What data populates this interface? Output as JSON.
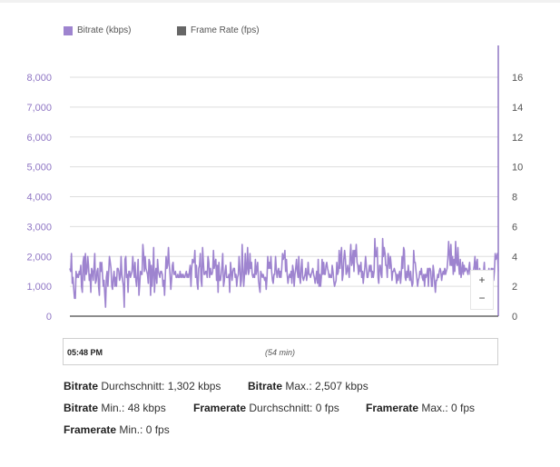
{
  "colors": {
    "bitrate": "#9e84cf",
    "framerate": "#666666",
    "grid": "#dddddd",
    "axis": "#8f76c4"
  },
  "legend": {
    "bitrate_label": "Bitrate (kbps)",
    "framerate_label": "Frame Rate (fps)"
  },
  "chart_data": {
    "type": "line",
    "series": [
      {
        "name": "Bitrate (kbps)",
        "axis": "left",
        "values": [
          1600,
          1500,
          2100,
          1100,
          1300,
          900,
          600,
          600,
          1500,
          1300,
          1400,
          1300,
          1500,
          1400,
          1700,
          1000,
          800,
          1800,
          2000,
          1200,
          2100,
          1400,
          1500,
          2000,
          1700,
          1200,
          1400,
          800,
          1600,
          1500,
          1200,
          1600,
          2100,
          1100,
          1200,
          1500,
          1600,
          1000,
          700,
          1800,
          1500,
          1800,
          1400,
          1000,
          1200,
          700,
          300,
          1300,
          1500,
          1000,
          1500,
          2000,
          1800,
          1600,
          1000,
          900,
          1300,
          1500,
          1000,
          1300,
          1000,
          1600,
          1600,
          1500,
          1200,
          1300,
          2000,
          1400,
          1200,
          1000,
          300,
          1900,
          2000,
          1300,
          1400,
          800,
          1500,
          1500,
          1300,
          1400,
          1500,
          2000,
          1600,
          1300,
          1800,
          1200,
          1000,
          1400,
          1900,
          700,
          1100,
          1500,
          1400,
          1400,
          2400,
          2100,
          1500,
          2000,
          1600,
          1500,
          1400,
          1100,
          1900,
          1800,
          700,
          1700,
          1000,
          1500,
          2300,
          800,
          1400,
          1600,
          1100,
          1900,
          1500,
          1400,
          1300,
          1500,
          1500,
          1400,
          1000,
          1200,
          700,
          1400,
          2000,
          1600,
          1700,
          2300,
          1800,
          1400,
          900,
          1200,
          1700,
          1800,
          1400,
          1400,
          1500,
          1300,
          1300,
          1400,
          1300,
          1300,
          1500,
          1300,
          1400,
          1300,
          1400,
          1300,
          1300,
          1400,
          1500,
          1300,
          1400,
          1300,
          1500,
          1700,
          1000,
          1600,
          1900,
          1800,
          1800,
          2200,
          1300,
          1700,
          1100,
          900,
          1600,
          1700,
          2100,
          1200,
          1000,
          2300,
          1800,
          1400,
          1400,
          1500,
          1500,
          1300,
          2000,
          1800,
          1300,
          1600,
          1400,
          1400,
          1500,
          2200,
          1600,
          1800,
          1900,
          1200,
          1700,
          800,
          1800,
          1200,
          1200,
          1400,
          1700,
          2100,
          1000,
          1200,
          1500,
          1700,
          1300,
          1300,
          1300,
          1400,
          800,
          1800,
          1500,
          1200,
          1500,
          1600,
          1600,
          1300,
          1400,
          1000,
          1300,
          1400,
          2000,
          1600,
          1000,
          1200,
          2400,
          1600,
          1000,
          1400,
          2100,
          1400,
          1600,
          2300,
          1400,
          1500,
          2100,
          1600,
          1800,
          1400,
          1300,
          1400,
          1300,
          1900,
          1400,
          1600,
          1800,
          1200,
          1000,
          800,
          1500,
          1400,
          1300,
          1400,
          1300,
          1200,
          1300,
          900,
          1300,
          2000,
          1600,
          1800,
          1600,
          2000,
          1500,
          1200,
          1100,
          1400,
          1400,
          2000,
          1600,
          1300,
          1500,
          1600,
          1300,
          1500,
          1300,
          1600,
          2100,
          1900,
          2000,
          2200,
          1500,
          1900,
          1400,
          1100,
          1300,
          1400,
          1300,
          1500,
          1100,
          1700,
          1500,
          1000,
          1400,
          1600,
          1900,
          1500,
          1300,
          2000,
          1300,
          1100,
          1600,
          1900,
          1300,
          1200,
          1300,
          1400,
          1600,
          1200,
          1400,
          1800,
          1400,
          1400,
          1300,
          1400,
          1500,
          1600,
          1400,
          1300,
          1100,
          1300,
          1500,
          1100,
          1900,
          1000,
          1400,
          1000,
          1300,
          1900,
          1400,
          1800,
          1400,
          1400,
          1700,
          1800,
          1600,
          1500,
          1300,
          1400,
          1300,
          1300,
          1700,
          1500,
          1200,
          1000,
          1100,
          1200,
          1800,
          1400,
          1500,
          2200,
          1600,
          2000,
          2300,
          1200,
          1400,
          1900,
          2200,
          1900,
          1400,
          1500,
          1700,
          1500,
          1300,
          2000,
          2400,
          1700,
          1800,
          2200,
          1500,
          2200,
          2000,
          2400,
          1800,
          1700,
          1400,
          1700,
          1500,
          1800,
          1300,
          1500,
          1100,
          1400,
          1600,
          2000,
          1700,
          1300,
          1300,
          1500,
          1700,
          1500,
          1700,
          1300,
          1500,
          1300,
          1500,
          2600,
          2000,
          2000,
          2300,
          1300,
          1100,
          1700,
          1700,
          1400,
          1300,
          2600,
          2000,
          2300,
          2100,
          1700,
          1700,
          1300,
          2100,
          1900,
          1600,
          2000,
          1700,
          1200,
          1500,
          1500,
          1600,
          1500,
          1400,
          1100,
          1400,
          1200,
          1400,
          1500,
          1100,
          1400,
          2000,
          1600,
          2300,
          2200,
          1300,
          1200,
          1500,
          1300,
          1700,
          1400,
          1200,
          1500,
          1200,
          1000,
          1100,
          2200,
          1800,
          1800,
          1500,
          1300,
          1000,
          1200,
          1300,
          1500,
          1400,
          1600,
          1300,
          1200,
          1400,
          1000,
          1400,
          1300,
          1400,
          1600,
          1000,
          1600,
          1600,
          1500,
          1000,
          1000,
          1700,
          1500,
          1100,
          800,
          1200,
          1200,
          1400,
          1300,
          1500,
          1600,
          1500,
          1200,
          1400,
          1500,
          1400,
          1600,
          1400,
          1500,
          1600,
          1900,
          2500,
          2100,
          1700,
          2400,
          1700,
          2000,
          1400,
          1900,
          1500,
          2500,
          1800,
          1700,
          2300,
          1700,
          1400,
          1900,
          1300,
          1500,
          1800,
          1400,
          1700,
          1500,
          1600,
          1600,
          1500,
          1400,
          1600,
          1800,
          1400,
          1400,
          1500,
          900,
          1500,
          1700,
          2000,
          1200,
          1800,
          1900,
          1300,
          800,
          1600,
          1300,
          1200,
          1500,
          1300,
          1500,
          1800,
          1300,
          900,
          1500,
          1000,
          1400,
          1600,
          1200,
          1300,
          1600,
          1400,
          1600,
          1200,
          1500,
          2100,
          1900,
          2000,
          2100,
          1500
        ]
      },
      {
        "name": "Frame Rate (fps)",
        "axis": "right",
        "values": []
      }
    ],
    "y_left": {
      "min": 0,
      "max": 8000,
      "ticks": [
        "0",
        "1,000",
        "2,000",
        "3,000",
        "4,000",
        "5,000",
        "6,000",
        "7,000",
        "8,000"
      ]
    },
    "y_right": {
      "min": 0,
      "max": 16,
      "ticks": [
        "0",
        "2",
        "4",
        "6",
        "8",
        "10",
        "12",
        "14",
        "16"
      ]
    },
    "grid": true,
    "legend_position": "top-left"
  },
  "zoom": {
    "in_label": "+",
    "out_label": "−"
  },
  "range": {
    "start": "05:48 PM",
    "duration": "(54 min)"
  },
  "stats": {
    "bitrate_avg": {
      "key": "Bitrate",
      "label": " Durchschnitt: 1,302 kbps"
    },
    "bitrate_max": {
      "key": "Bitrate",
      "label": " Max.: 2,507 kbps"
    },
    "bitrate_min": {
      "key": "Bitrate",
      "label": " Min.: 48 kbps"
    },
    "framerate_avg": {
      "key": "Framerate",
      "label": " Durchschnitt: 0 fps"
    },
    "framerate_max": {
      "key": "Framerate",
      "label": " Max.: 0 fps"
    },
    "framerate_min": {
      "key": "Framerate",
      "label": " Min.: 0 fps"
    }
  }
}
